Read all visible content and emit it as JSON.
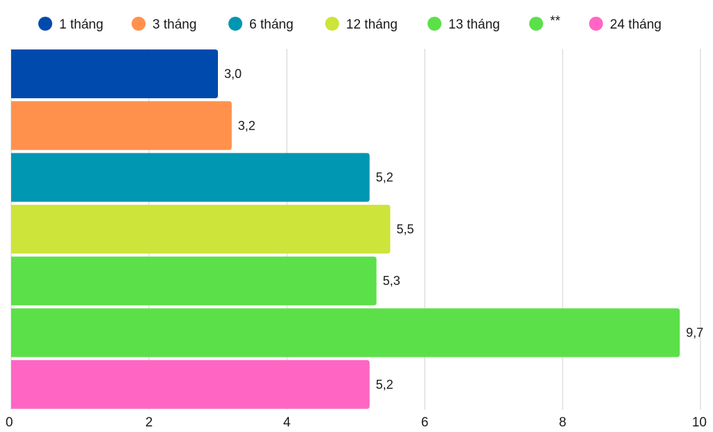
{
  "chart_data": {
    "type": "bar",
    "orientation": "horizontal",
    "legend_position": "top",
    "grid": true,
    "xlim": [
      0,
      10
    ],
    "x_ticks": [
      "0",
      "2",
      "4",
      "6",
      "8",
      "10"
    ],
    "series": [
      {
        "name": "1 tháng",
        "value": 3.0,
        "value_label": "3,0",
        "color": "#004aad"
      },
      {
        "name": "3 tháng",
        "value": 3.2,
        "value_label": "3,2",
        "color": "#ff914d"
      },
      {
        "name": "6 tháng",
        "value": 5.2,
        "value_label": "5,2",
        "color": "#0097b2"
      },
      {
        "name": "12 tháng",
        "value": 5.5,
        "value_label": "5,5",
        "color": "#cde43b"
      },
      {
        "name": "13 tháng",
        "value": 5.3,
        "value_label": "5,3",
        "color": "#5ce04a"
      },
      {
        "name": "**",
        "value": 9.7,
        "value_label": "9,7",
        "color": "#5ce04a"
      },
      {
        "name": "24 tháng",
        "value": 5.2,
        "value_label": "5,2",
        "color": "#ff66c4"
      }
    ]
  }
}
